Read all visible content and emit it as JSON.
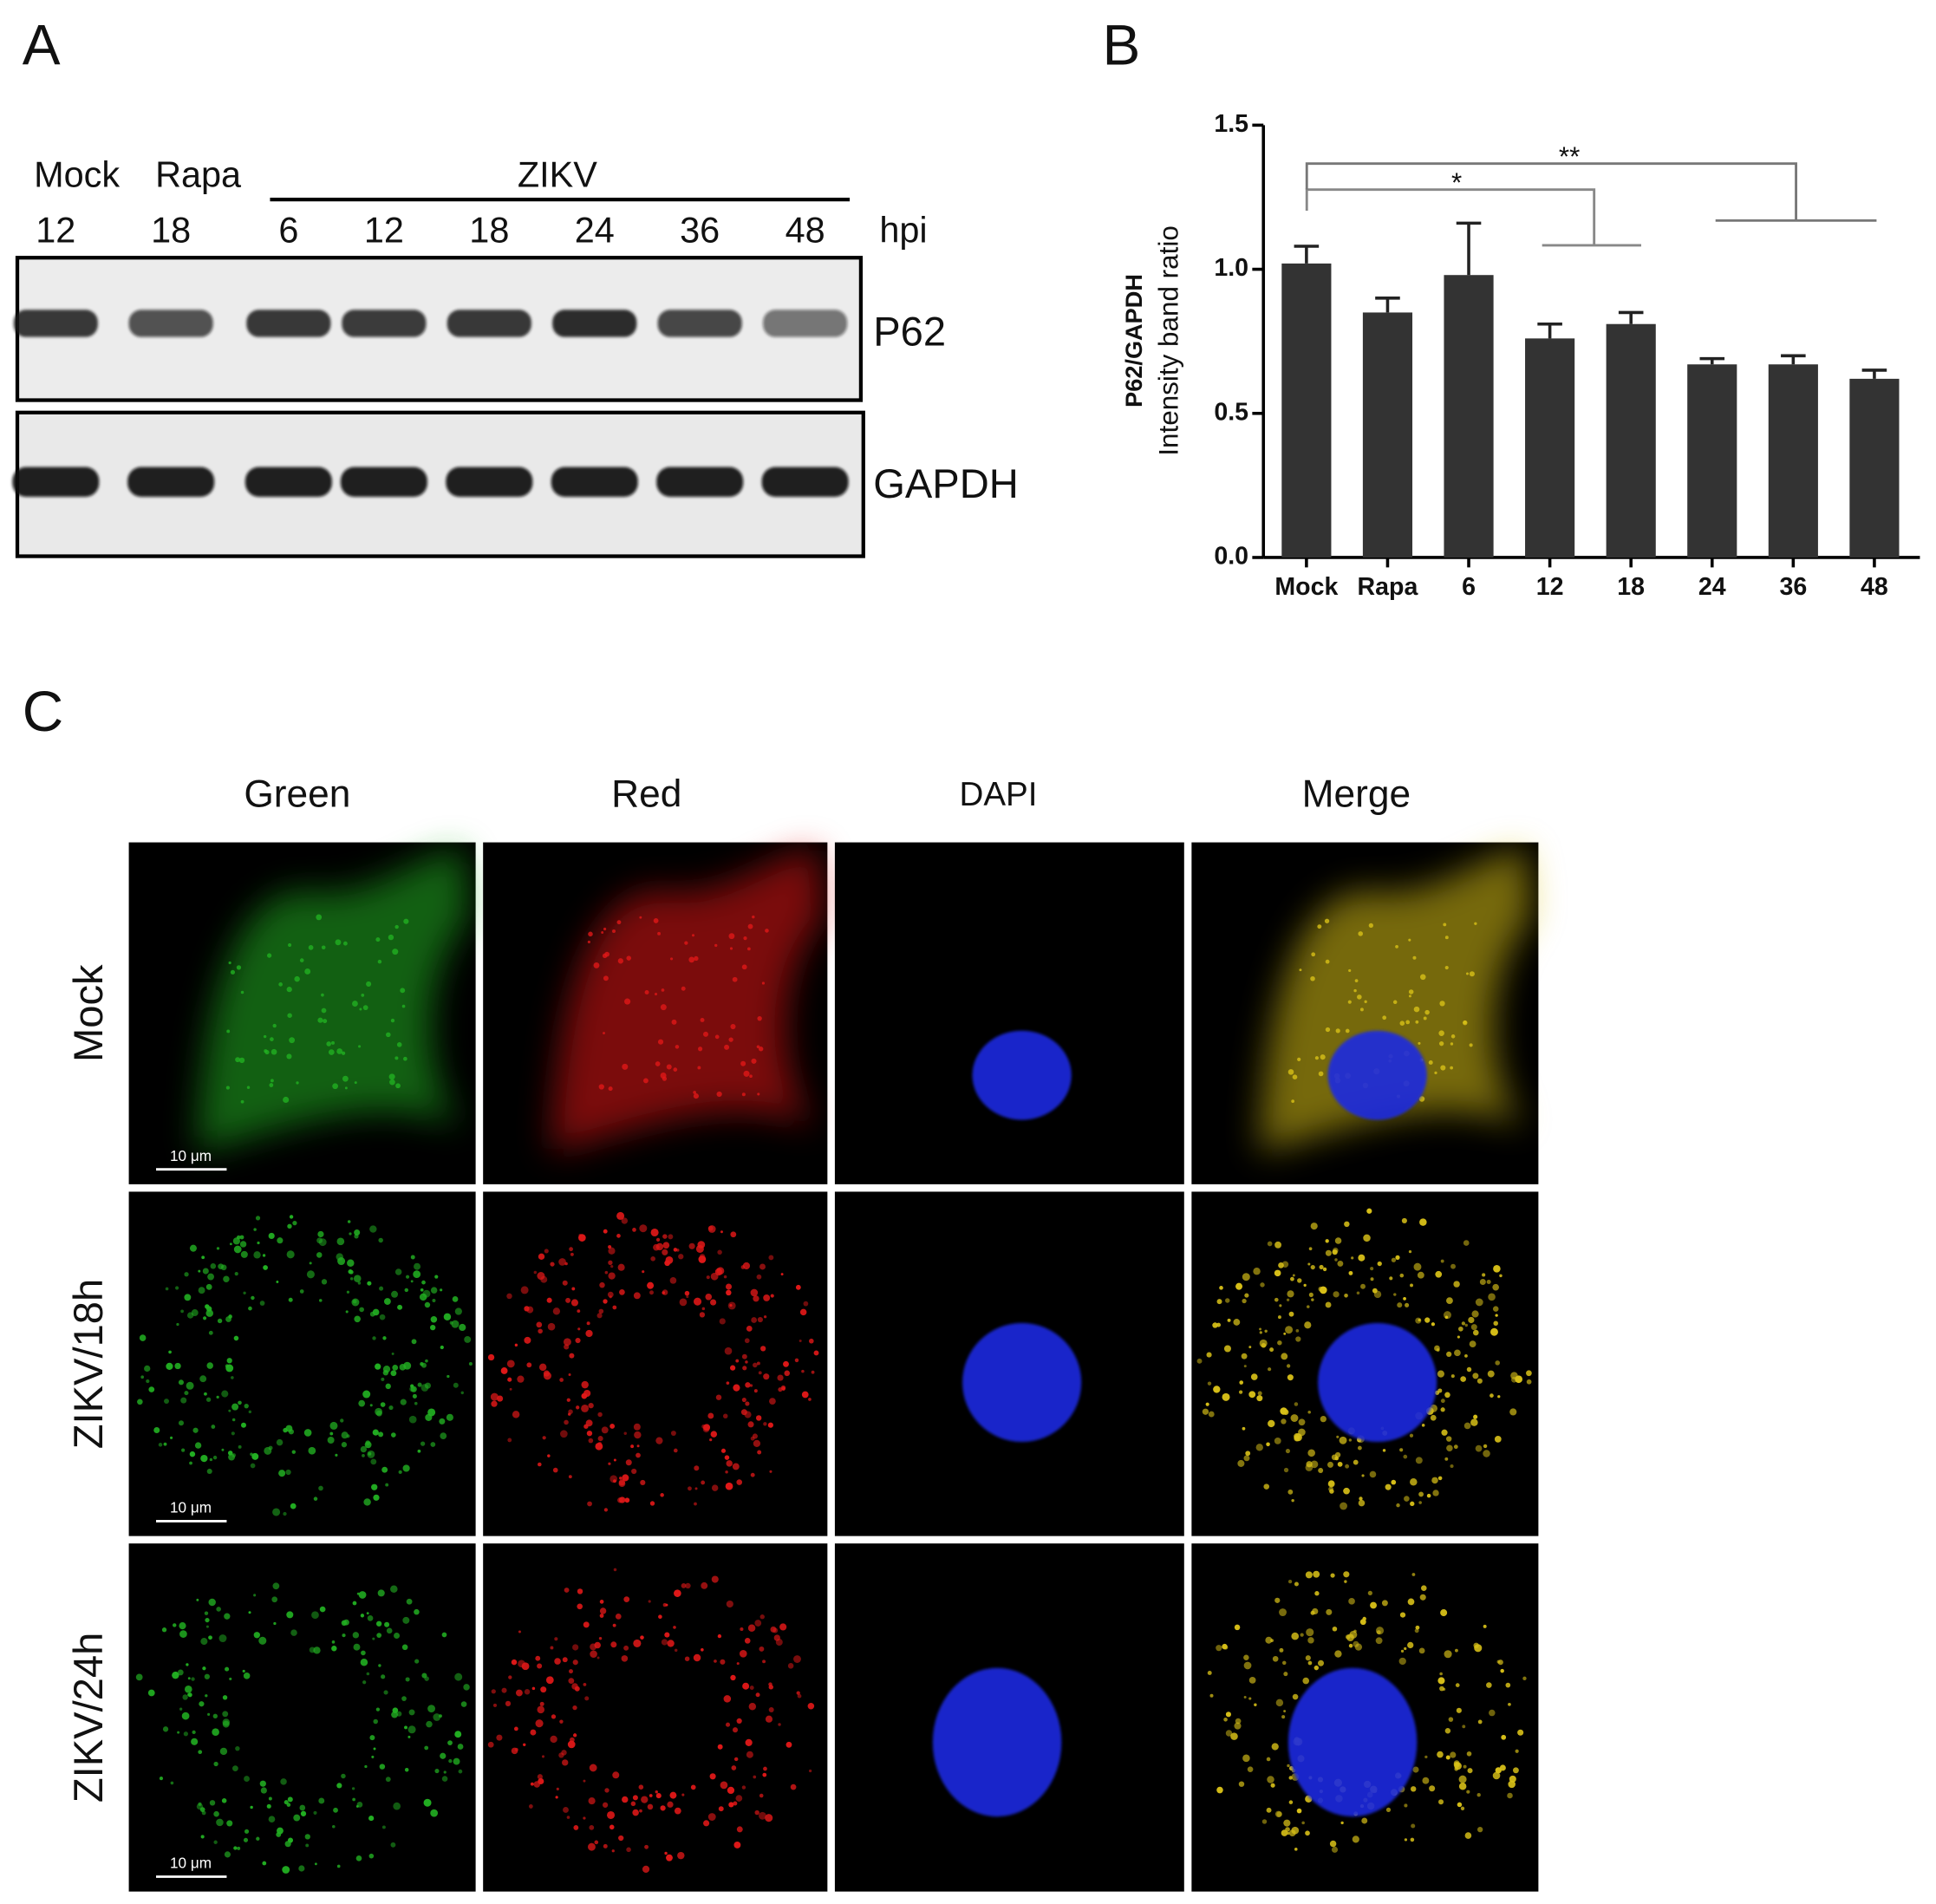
{
  "panel_a": {
    "label": "A",
    "groups": [
      "Mock",
      "Rapa",
      "ZIKV"
    ],
    "lanes": [
      "12",
      "18",
      "6",
      "12",
      "18",
      "24",
      "36",
      "48"
    ],
    "unit": "hpi",
    "blots": [
      "P62",
      "GAPDH"
    ]
  },
  "chart_data": {
    "type": "bar",
    "panel_label": "B",
    "y_label": [
      "P62/GAPDH",
      "Intensity band ratio"
    ],
    "categories": [
      "Mock",
      "Rapa",
      "6",
      "12",
      "18",
      "24",
      "36",
      "48"
    ],
    "values": [
      1.02,
      0.85,
      0.98,
      0.76,
      0.81,
      0.67,
      0.67,
      0.62
    ],
    "errors": [
      0.06,
      0.05,
      0.18,
      0.05,
      0.04,
      0.02,
      0.03,
      0.03
    ],
    "color": "#333333",
    "ylim": [
      0,
      1.5
    ],
    "yticks": [
      {
        "value": 0,
        "label": "0.0"
      },
      {
        "value": 0.5,
        "label": "0.5"
      },
      {
        "value": 1,
        "label": "1.0"
      },
      {
        "value": 1.5,
        "label": "1.5"
      }
    ],
    "annotations": [
      "*",
      "**"
    ]
  },
  "panel_c": {
    "label": "C",
    "columns": [
      "Green",
      "Red",
      "DAPI",
      "Merge"
    ],
    "rows": [
      "Mock",
      "ZIKV/18h",
      "ZIKV/24h"
    ],
    "scale_bar": "10 μm"
  }
}
